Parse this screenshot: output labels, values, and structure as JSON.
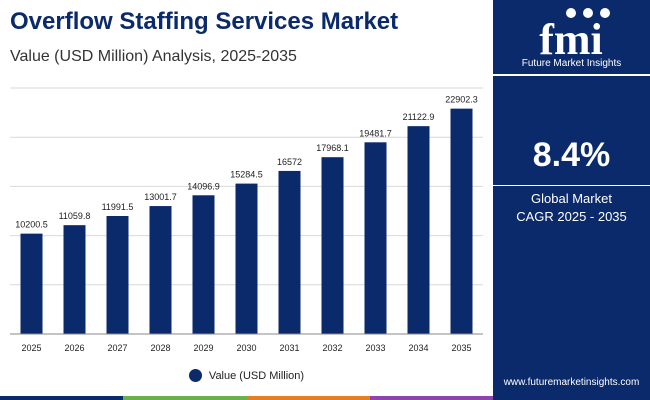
{
  "header": {
    "title": "Overflow Staffing Services Market",
    "subtitle": "Value (USD Million) Analysis, 2025-2035"
  },
  "sidebar": {
    "logo_text": "fmi",
    "logo_subtitle": "Future Market Insights",
    "cagr_value": "8.4%",
    "cagr_label_line1": "Global Market",
    "cagr_label_line2": "CAGR 2025 - 2035",
    "website": "www.futuremarketinsights.com"
  },
  "colors": {
    "bar": "#0b2a6b",
    "sidebar": "#0b2a6b",
    "stripe": [
      "#0b2a6b",
      "#6ab04c",
      "#e67e22",
      "#8e44ad"
    ]
  },
  "chart_data": {
    "type": "bar",
    "categories": [
      "2025",
      "2026",
      "2027",
      "2028",
      "2029",
      "2030",
      "2031",
      "2032",
      "2033",
      "2034",
      "2035"
    ],
    "series": [
      {
        "name": "Value (USD Million)",
        "values": [
          10200.5,
          11059.8,
          11991.5,
          13001.7,
          14096.9,
          15284.5,
          16572,
          17968.1,
          19481.7,
          21122.9,
          22902.3
        ],
        "labels": [
          "10200.5",
          "11059.8",
          "11991.5",
          "13001.7",
          "14096.9",
          "15284.5",
          "16572",
          "17968.1",
          "19481.7",
          "21122.9",
          "22902.3"
        ]
      }
    ],
    "title": "Overflow Staffing Services Market",
    "subtitle": "Value (USD Million) Analysis, 2025-2035",
    "xlabel": "",
    "ylabel": "",
    "ylim": [
      0,
      25000
    ],
    "grid": true,
    "legend": "bottom-center"
  }
}
